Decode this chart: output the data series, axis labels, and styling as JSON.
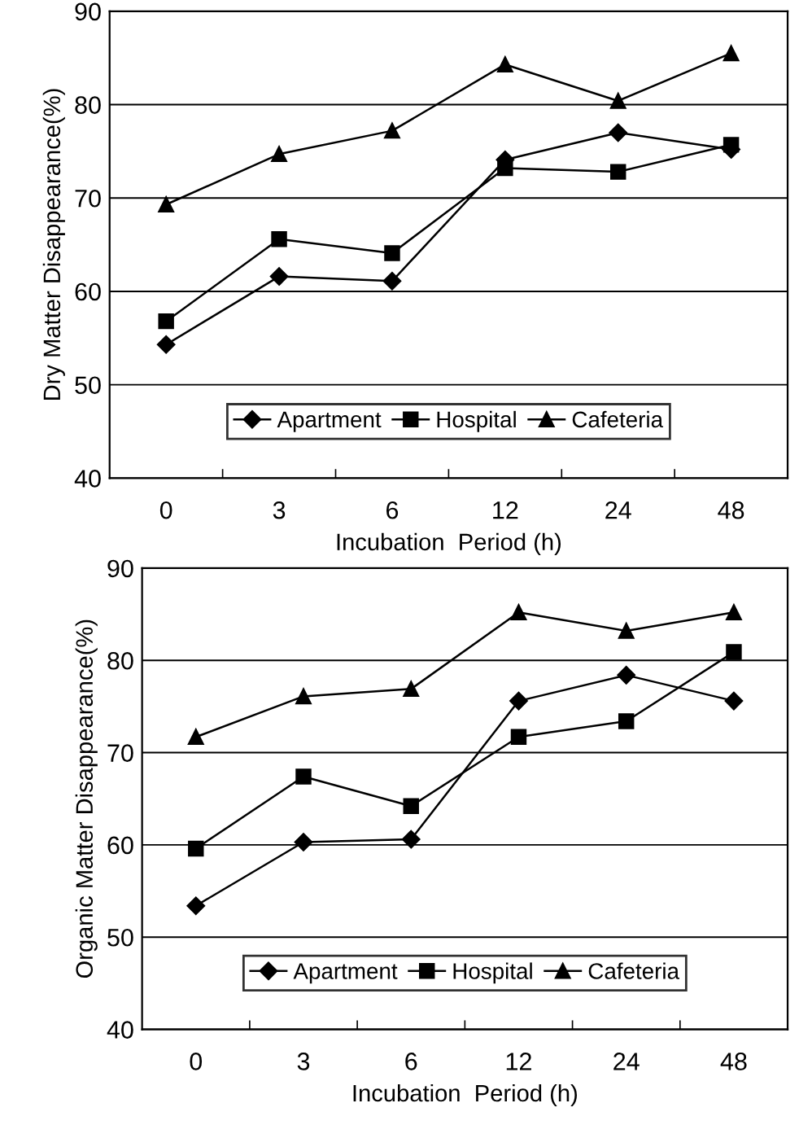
{
  "chart_data": [
    {
      "type": "line",
      "ylabel": "Dry Matter Disappearance(%)",
      "xlabel": "Incubation  Period (h)",
      "categories": [
        "0",
        "3",
        "6",
        "12",
        "24",
        "48"
      ],
      "ylim": [
        40,
        90
      ],
      "yticks": [
        40,
        50,
        60,
        70,
        80,
        90
      ],
      "grid": "y",
      "legend": "bottom",
      "series": [
        {
          "name": "Apartment",
          "color": "#000000",
          "marker": "diamond",
          "values": [
            54.3,
            61.6,
            61.1,
            74.1,
            77.0,
            75.2
          ]
        },
        {
          "name": "Hospital",
          "color": "#000000",
          "marker": "square",
          "values": [
            56.8,
            65.6,
            64.1,
            73.2,
            72.8,
            75.7
          ]
        },
        {
          "name": "Cafeteria",
          "color": "#000000",
          "marker": "triangle",
          "values": [
            69.3,
            74.7,
            77.2,
            84.3,
            80.4,
            85.5
          ]
        }
      ]
    },
    {
      "type": "line",
      "ylabel": "Organic Matter Disappearance(%)",
      "xlabel": "Incubation  Period (h)",
      "categories": [
        "0",
        "3",
        "6",
        "12",
        "24",
        "48"
      ],
      "ylim": [
        40,
        90
      ],
      "yticks": [
        40,
        50,
        60,
        70,
        80,
        90
      ],
      "grid": "y",
      "legend": "bottom",
      "series": [
        {
          "name": "Apartment",
          "color": "#000000",
          "marker": "diamond",
          "values": [
            53.4,
            60.3,
            60.6,
            75.6,
            78.4,
            75.6
          ]
        },
        {
          "name": "Hospital",
          "color": "#000000",
          "marker": "square",
          "values": [
            59.6,
            67.4,
            64.2,
            71.7,
            73.4,
            80.9
          ]
        },
        {
          "name": "Cafeteria",
          "color": "#000000",
          "marker": "triangle",
          "values": [
            71.7,
            76.1,
            76.9,
            85.2,
            83.2,
            85.2
          ]
        }
      ]
    }
  ]
}
